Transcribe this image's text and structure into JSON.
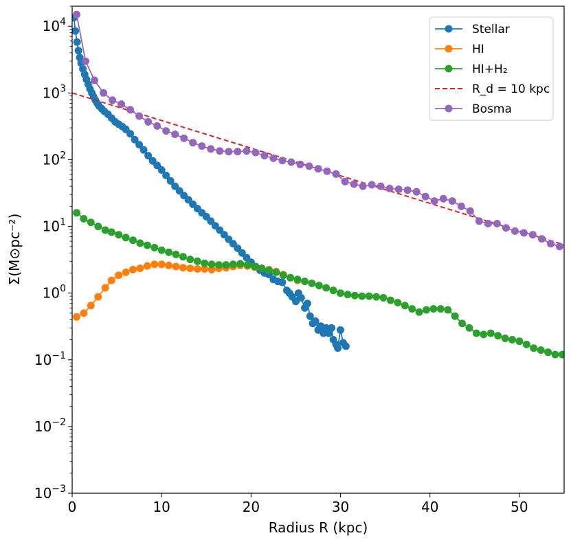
{
  "chart_data": {
    "type": "line",
    "xlabel": "Radius R (kpc)",
    "ylabel": "Σ(M⊙pc⁻²)",
    "xlim": [
      0,
      55
    ],
    "ylim": [
      0.001,
      20000
    ],
    "yscale": "log",
    "grid": false,
    "legend_position": "top-right",
    "x_ticks": [
      0,
      10,
      20,
      30,
      40,
      50
    ],
    "y_ticks": [
      {
        "value": 0.001,
        "base": "10",
        "exp": "−3"
      },
      {
        "value": 0.01,
        "base": "10",
        "exp": "−2"
      },
      {
        "value": 0.1,
        "base": "10",
        "exp": "−1"
      },
      {
        "value": 1,
        "base": "10",
        "exp": "0"
      },
      {
        "value": 10,
        "base": "10",
        "exp": "1"
      },
      {
        "value": 100,
        "base": "10",
        "exp": "2"
      },
      {
        "value": 1000,
        "base": "10",
        "exp": "3"
      },
      {
        "value": 10000,
        "base": "10",
        "exp": "4"
      }
    ],
    "series": [
      {
        "name": "Stellar",
        "color": "#1f77b4",
        "style": "line-marker",
        "points": [
          [
            0.2,
            13500
          ],
          [
            0.35,
            8500
          ],
          [
            0.55,
            5800
          ],
          [
            0.7,
            4300
          ],
          [
            0.85,
            3400
          ],
          [
            1.0,
            2800
          ],
          [
            1.2,
            2300
          ],
          [
            1.4,
            1900
          ],
          [
            1.6,
            1600
          ],
          [
            1.8,
            1350
          ],
          [
            2.0,
            1150
          ],
          [
            2.2,
            1000
          ],
          [
            2.4,
            880
          ],
          [
            2.6,
            780
          ],
          [
            2.8,
            700
          ],
          [
            3.0,
            640
          ],
          [
            3.3,
            580
          ],
          [
            3.6,
            530
          ],
          [
            4.0,
            480
          ],
          [
            4.4,
            420
          ],
          [
            4.8,
            370
          ],
          [
            5.2,
            340
          ],
          [
            5.6,
            315
          ],
          [
            6.0,
            285
          ],
          [
            6.5,
            245
          ],
          [
            7.0,
            200
          ],
          [
            7.5,
            168
          ],
          [
            8.0,
            140
          ],
          [
            8.5,
            115
          ],
          [
            9.0,
            96
          ],
          [
            9.5,
            82
          ],
          [
            10.0,
            70
          ],
          [
            10.5,
            58
          ],
          [
            11.0,
            48
          ],
          [
            11.5,
            40
          ],
          [
            12.0,
            34
          ],
          [
            12.5,
            29
          ],
          [
            13.0,
            25
          ],
          [
            13.5,
            21.5
          ],
          [
            14.0,
            18.5
          ],
          [
            14.5,
            16
          ],
          [
            15.0,
            14
          ],
          [
            15.5,
            12
          ],
          [
            16.0,
            10.2
          ],
          [
            16.5,
            8.8
          ],
          [
            17.0,
            7.5
          ],
          [
            17.5,
            6.4
          ],
          [
            18.0,
            5.5
          ],
          [
            18.5,
            4.7
          ],
          [
            19.0,
            4.0
          ],
          [
            19.5,
            3.4
          ],
          [
            20.0,
            2.9
          ],
          [
            20.5,
            2.5
          ],
          [
            21.0,
            2.2
          ],
          [
            21.5,
            2.0
          ],
          [
            22.0,
            1.9
          ],
          [
            22.5,
            1.6
          ],
          [
            23.0,
            1.5
          ],
          [
            23.5,
            1.45
          ],
          [
            24.0,
            1.1
          ],
          [
            24.3,
            1.0
          ],
          [
            24.6,
            0.88
          ],
          [
            25.0,
            0.75
          ],
          [
            25.3,
            1.0
          ],
          [
            25.6,
            0.85
          ],
          [
            26.0,
            0.6
          ],
          [
            26.3,
            0.7
          ],
          [
            26.6,
            0.45
          ],
          [
            26.9,
            0.35
          ],
          [
            27.2,
            0.38
          ],
          [
            27.5,
            0.28
          ],
          [
            27.8,
            0.32
          ],
          [
            28.1,
            0.25
          ],
          [
            28.4,
            0.3
          ],
          [
            28.7,
            0.25
          ],
          [
            29.0,
            0.3
          ],
          [
            29.2,
            0.2
          ],
          [
            29.5,
            0.17
          ],
          [
            29.7,
            0.15
          ],
          [
            30.0,
            0.28
          ],
          [
            30.3,
            0.18
          ],
          [
            30.6,
            0.16
          ]
        ]
      },
      {
        "name": "HI",
        "color": "#ff7f0e",
        "style": "line-marker",
        "points": [
          [
            0.5,
            0.44
          ],
          [
            1.3,
            0.5
          ],
          [
            2.1,
            0.65
          ],
          [
            2.9,
            0.88
          ],
          [
            3.7,
            1.2
          ],
          [
            4.4,
            1.55
          ],
          [
            5.2,
            1.85
          ],
          [
            6.0,
            2.05
          ],
          [
            6.8,
            2.25
          ],
          [
            7.6,
            2.35
          ],
          [
            8.4,
            2.55
          ],
          [
            9.2,
            2.7
          ],
          [
            10.0,
            2.7
          ],
          [
            10.8,
            2.6
          ],
          [
            11.6,
            2.5
          ],
          [
            12.4,
            2.4
          ],
          [
            13.2,
            2.35
          ],
          [
            14.0,
            2.3
          ],
          [
            14.8,
            2.3
          ],
          [
            15.6,
            2.25
          ],
          [
            16.4,
            2.35
          ],
          [
            17.2,
            2.4
          ],
          [
            18.0,
            2.5
          ],
          [
            18.8,
            2.6
          ],
          [
            19.6,
            2.55
          ],
          [
            20.4,
            2.45
          ],
          [
            21.2,
            2.35
          ],
          [
            22.0,
            2.25
          ],
          [
            22.8,
            2.1
          ],
          [
            23.6,
            1.9
          ],
          [
            24.4,
            1.7
          ],
          [
            25.2,
            1.55
          ]
        ]
      },
      {
        "name": "HI+H₂",
        "color": "#2ca02c",
        "style": "line-marker",
        "points": [
          [
            0.5,
            16
          ],
          [
            1.3,
            13
          ],
          [
            2.1,
            11.5
          ],
          [
            2.9,
            10
          ],
          [
            3.7,
            8.8
          ],
          [
            4.4,
            8.2
          ],
          [
            5.2,
            7.5
          ],
          [
            6.0,
            6.8
          ],
          [
            6.8,
            6.2
          ],
          [
            7.6,
            5.6
          ],
          [
            8.4,
            5.2
          ],
          [
            9.2,
            4.8
          ],
          [
            10.0,
            4.4
          ],
          [
            10.8,
            4.1
          ],
          [
            11.6,
            3.8
          ],
          [
            12.4,
            3.5
          ],
          [
            13.2,
            3.2
          ],
          [
            14.0,
            3.0
          ],
          [
            14.8,
            2.8
          ],
          [
            15.6,
            2.7
          ],
          [
            16.4,
            2.65
          ],
          [
            17.2,
            2.65
          ],
          [
            18.0,
            2.7
          ],
          [
            18.8,
            2.75
          ],
          [
            19.6,
            2.65
          ],
          [
            20.4,
            2.5
          ],
          [
            21.2,
            2.35
          ],
          [
            22.0,
            2.2
          ],
          [
            22.8,
            2.05
          ],
          [
            23.6,
            1.85
          ],
          [
            24.4,
            1.7
          ],
          [
            25.2,
            1.6
          ],
          [
            26.0,
            1.5
          ],
          [
            26.8,
            1.4
          ],
          [
            27.6,
            1.3
          ],
          [
            28.4,
            1.2
          ],
          [
            29.2,
            1.1
          ],
          [
            30.0,
            1.0
          ],
          [
            30.8,
            0.95
          ],
          [
            31.6,
            0.92
          ],
          [
            32.4,
            0.9
          ],
          [
            33.2,
            0.9
          ],
          [
            34.0,
            0.88
          ],
          [
            34.8,
            0.85
          ],
          [
            35.6,
            0.78
          ],
          [
            36.4,
            0.72
          ],
          [
            37.2,
            0.65
          ],
          [
            38.0,
            0.58
          ],
          [
            38.8,
            0.52
          ],
          [
            39.6,
            0.56
          ],
          [
            40.4,
            0.58
          ],
          [
            41.2,
            0.58
          ],
          [
            42.0,
            0.56
          ],
          [
            42.8,
            0.45
          ],
          [
            43.6,
            0.35
          ],
          [
            44.4,
            0.3
          ],
          [
            45.2,
            0.25
          ],
          [
            46.0,
            0.24
          ],
          [
            46.8,
            0.25
          ],
          [
            47.6,
            0.23
          ],
          [
            48.4,
            0.21
          ],
          [
            49.2,
            0.2
          ],
          [
            50.0,
            0.19
          ],
          [
            50.8,
            0.17
          ],
          [
            51.6,
            0.15
          ],
          [
            52.4,
            0.14
          ],
          [
            53.2,
            0.13
          ],
          [
            54.0,
            0.12
          ],
          [
            54.8,
            0.12
          ]
        ]
      },
      {
        "name": "R_d = 10 kpc",
        "color": "#d62728",
        "style": "dashed",
        "points": [
          [
            0,
            1000
          ],
          [
            55,
            5.3
          ]
        ]
      },
      {
        "name": "Bosma",
        "color": "#9467bd",
        "style": "line-marker",
        "points": [
          [
            0.5,
            15000
          ],
          [
            1.5,
            3000
          ],
          [
            2.5,
            1550
          ],
          [
            3.5,
            1000
          ],
          [
            4.5,
            780
          ],
          [
            5.5,
            680
          ],
          [
            6.5,
            560
          ],
          [
            7.5,
            450
          ],
          [
            8.5,
            370
          ],
          [
            9.5,
            320
          ],
          [
            10.5,
            270
          ],
          [
            11.5,
            240
          ],
          [
            12.5,
            210
          ],
          [
            13.5,
            180
          ],
          [
            14.5,
            160
          ],
          [
            15.5,
            145
          ],
          [
            16.5,
            135
          ],
          [
            17.5,
            132
          ],
          [
            18.5,
            132
          ],
          [
            19.5,
            135
          ],
          [
            20.5,
            128
          ],
          [
            21.5,
            115
          ],
          [
            22.5,
            105
          ],
          [
            23.5,
            97
          ],
          [
            24.5,
            92
          ],
          [
            25.5,
            85
          ],
          [
            26.5,
            80
          ],
          [
            27.5,
            73
          ],
          [
            28.5,
            67
          ],
          [
            29.5,
            61
          ],
          [
            30.5,
            47
          ],
          [
            31.5,
            43
          ],
          [
            32.5,
            40
          ],
          [
            33.5,
            42
          ],
          [
            34.5,
            40
          ],
          [
            35.5,
            37
          ],
          [
            36.5,
            36
          ],
          [
            37.5,
            35
          ],
          [
            38.5,
            33
          ],
          [
            39.5,
            28
          ],
          [
            40.5,
            24
          ],
          [
            41.5,
            26
          ],
          [
            42.5,
            24
          ],
          [
            43.5,
            20
          ],
          [
            44.5,
            17
          ],
          [
            45.5,
            12
          ],
          [
            46.5,
            11
          ],
          [
            47.5,
            11
          ],
          [
            48.5,
            9.5
          ],
          [
            49.5,
            8.5
          ],
          [
            50.5,
            8
          ],
          [
            51.5,
            7.5
          ],
          [
            52.5,
            6.5
          ],
          [
            53.5,
            5.5
          ],
          [
            54.5,
            5
          ]
        ]
      }
    ]
  }
}
